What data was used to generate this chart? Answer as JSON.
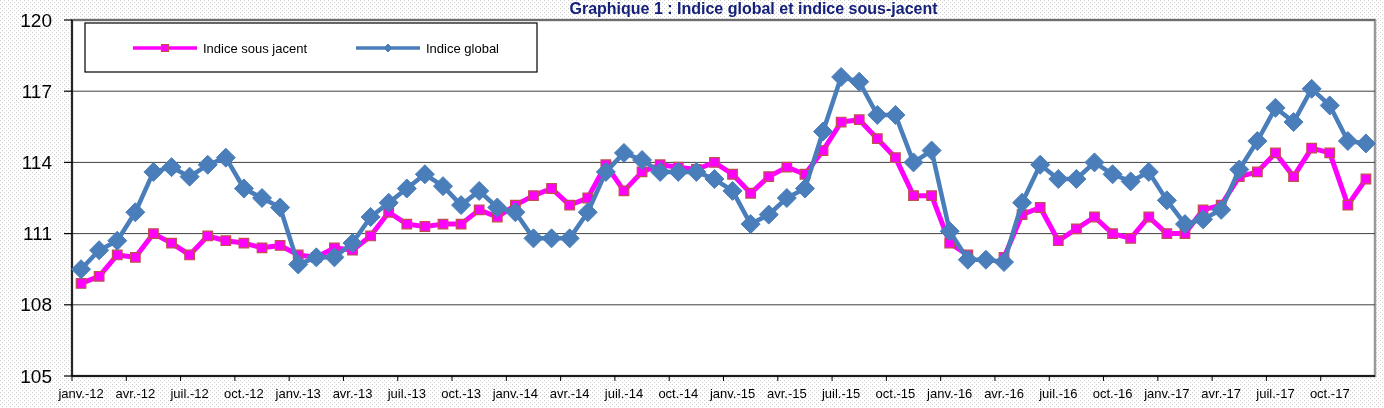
{
  "chart_data": {
    "type": "line",
    "title": "Graphique 1 : Indice global et indice sous-jacent",
    "categories": [
      "janv.-12",
      null,
      null,
      "avr.-12",
      null,
      null,
      "juil.-12",
      null,
      null,
      "oct.-12",
      null,
      null,
      "janv.-13",
      null,
      null,
      "avr.-13",
      null,
      null,
      "juil.-13",
      null,
      null,
      "oct.-13",
      null,
      null,
      "janv.-14",
      null,
      null,
      "avr.-14",
      null,
      null,
      "juil.-14",
      null,
      null,
      "oct.-14",
      null,
      null,
      "janv.-15",
      null,
      null,
      "avr.-15",
      null,
      null,
      "juil.-15",
      null,
      null,
      "oct.-15",
      null,
      null,
      "janv.-16",
      null,
      null,
      "avr.-16",
      null,
      null,
      "juil.-16",
      null,
      null,
      "oct.-16",
      null,
      null,
      "janv.-17",
      null,
      null,
      "avr.-17",
      null,
      null,
      "juil.-17",
      null,
      null,
      "oct.-17",
      null,
      null
    ],
    "series": [
      {
        "name": "Indice sous jacent",
        "color": "#ff00ff",
        "marker": "square",
        "values": [
          108.9,
          109.2,
          110.1,
          110.0,
          111.0,
          110.6,
          110.1,
          110.9,
          110.7,
          110.6,
          110.4,
          110.5,
          110.1,
          110.0,
          110.4,
          110.3,
          110.9,
          111.9,
          111.4,
          111.3,
          111.4,
          111.4,
          112.0,
          111.7,
          112.2,
          112.6,
          112.9,
          112.2,
          112.5,
          113.9,
          112.8,
          113.6,
          113.9,
          113.8,
          113.7,
          114.0,
          113.5,
          112.7,
          113.4,
          113.8,
          113.5,
          114.5,
          115.7,
          115.8,
          115.0,
          114.2,
          112.6,
          112.6,
          110.6,
          110.1,
          null,
          110.0,
          111.8,
          112.1,
          110.7,
          111.2,
          111.7,
          111.0,
          110.8,
          111.7,
          111.0,
          111.0,
          112.0,
          112.2,
          113.4,
          113.6,
          114.4,
          113.4,
          114.6,
          114.4,
          112.2,
          113.3
        ]
      },
      {
        "name": "Indice global",
        "color": "#4a7ebb",
        "marker": "diamond",
        "values": [
          109.5,
          110.3,
          110.7,
          111.9,
          113.6,
          113.8,
          113.4,
          113.9,
          114.2,
          112.9,
          112.5,
          112.1,
          109.7,
          110.0,
          110.0,
          110.6,
          111.7,
          112.3,
          112.9,
          113.5,
          113.0,
          112.2,
          112.8,
          112.1,
          111.9,
          110.8,
          110.8,
          110.8,
          111.9,
          113.6,
          114.4,
          114.1,
          113.6,
          113.6,
          113.6,
          113.3,
          112.8,
          111.4,
          111.8,
          112.5,
          112.9,
          115.3,
          117.6,
          117.4,
          116.0,
          116.0,
          114.0,
          114.5,
          111.1,
          109.9,
          109.9,
          109.8,
          112.3,
          113.9,
          113.3,
          113.3,
          114.0,
          113.5,
          113.2,
          113.6,
          112.4,
          111.4,
          111.6,
          112.0,
          113.7,
          114.9,
          116.3,
          115.7,
          117.1,
          116.4,
          114.9,
          114.8
        ]
      }
    ],
    "ylim": [
      105,
      120
    ],
    "yticks": [
      105,
      108,
      111,
      114,
      117,
      120
    ],
    "grid": "y",
    "legend": "top left"
  }
}
